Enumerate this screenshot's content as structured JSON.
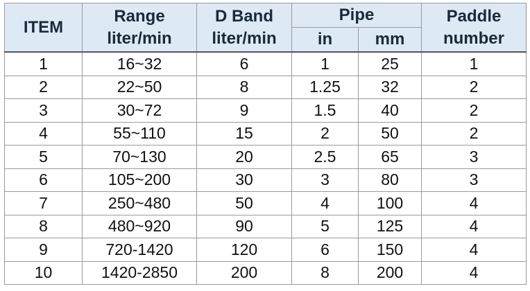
{
  "header": {
    "item": "ITEM",
    "range": [
      "Range",
      "liter/min"
    ],
    "dband": [
      "D Band",
      "liter/min"
    ],
    "pipe": "Pipe",
    "pipe_in": "in",
    "pipe_mm": "mm",
    "paddle": [
      "Paddle",
      "number"
    ]
  },
  "table": {
    "rows": [
      [
        "1",
        "16~32",
        "6",
        "1",
        "25",
        "1"
      ],
      [
        "2",
        "22~50",
        "8",
        "1.25",
        "32",
        "2"
      ],
      [
        "3",
        "30~72",
        "9",
        "1.5",
        "40",
        "2"
      ],
      [
        "4",
        "55~110",
        "15",
        "2",
        "50",
        "2"
      ],
      [
        "5",
        "70~130",
        "20",
        "2.5",
        "65",
        "3"
      ],
      [
        "6",
        "105~200",
        "30",
        "3",
        "80",
        "3"
      ],
      [
        "7",
        "250~480",
        "50",
        "4",
        "100",
        "4"
      ],
      [
        "8",
        "480~920",
        "90",
        "5",
        "125",
        "4"
      ],
      [
        "9",
        "720-1420",
        "120",
        "6",
        "150",
        "4"
      ],
      [
        "10",
        "1420-2850",
        "200",
        "8",
        "200",
        "4"
      ]
    ]
  }
}
